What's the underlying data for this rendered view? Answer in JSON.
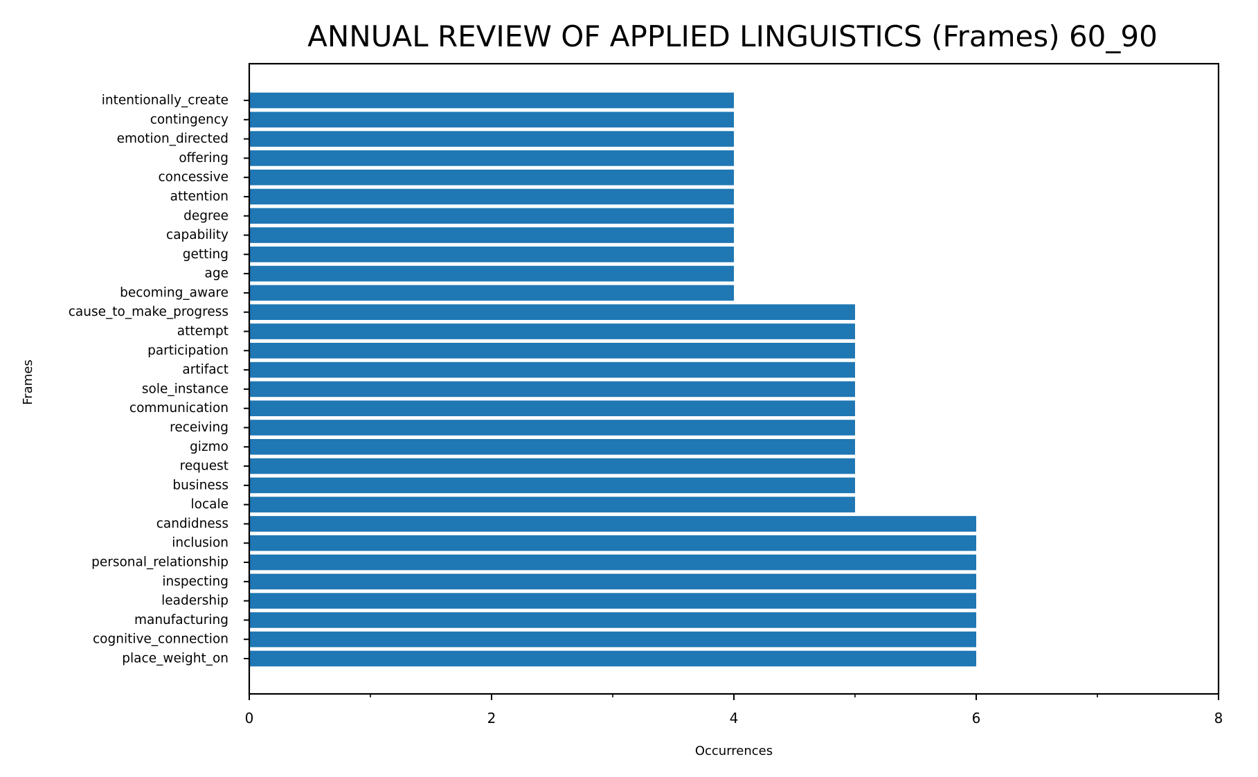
{
  "chart_data": {
    "type": "bar",
    "orientation": "horizontal",
    "title": "ANNUAL REVIEW OF APPLIED LINGUISTICS (Frames) 60_90",
    "xlabel": "Occurrences",
    "ylabel": "Frames",
    "xlim": [
      0,
      8
    ],
    "xticks": [
      "0",
      "2",
      "4",
      "6",
      "8"
    ],
    "grid": false,
    "bar_color": "#1f77b4",
    "categories": [
      "intentionally_create",
      "contingency",
      "emotion_directed",
      "offering",
      "concessive",
      "attention",
      "degree",
      "capability",
      "getting",
      "age",
      "becoming_aware",
      "cause_to_make_progress",
      "attempt",
      "participation",
      "artifact",
      "sole_instance",
      "communication",
      "receiving",
      "gizmo",
      "request",
      "business",
      "locale",
      "candidness",
      "inclusion",
      "personal_relationship",
      "inspecting",
      "leadership",
      "manufacturing",
      "cognitive_connection",
      "place_weight_on"
    ],
    "values": [
      4,
      4,
      4,
      4,
      4,
      4,
      4,
      4,
      4,
      4,
      4,
      5,
      5,
      5,
      5,
      5,
      5,
      5,
      5,
      5,
      5,
      5,
      6,
      6,
      6,
      6,
      6,
      6,
      6,
      6
    ]
  }
}
